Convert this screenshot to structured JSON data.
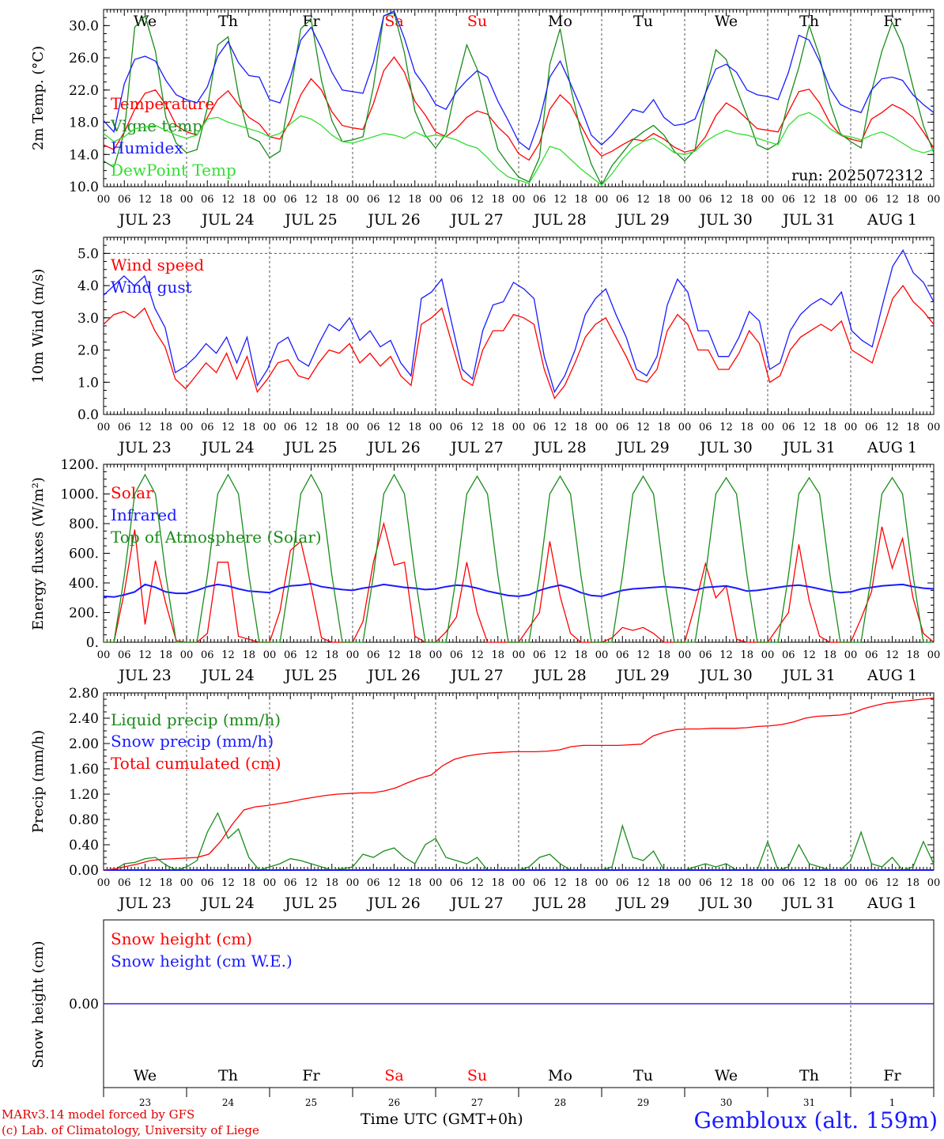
{
  "days": [
    "We",
    "Th",
    "Fr",
    "Sa",
    "Su",
    "Mo",
    "Tu",
    "We",
    "Th",
    "Fr"
  ],
  "weekend_days": [
    3,
    4
  ],
  "day_numbers": [
    "23",
    "24",
    "25",
    "26",
    "27",
    "28",
    "29",
    "30",
    "31",
    "1"
  ],
  "date_labels": [
    "JUL 23",
    "JUL 24",
    "JUL 25",
    "JUL 26",
    "JUL 27",
    "JUL 28",
    "JUL 29",
    "JUL 30",
    "JUL 31",
    "AUG  1"
  ],
  "hour_labels": [
    "00",
    "06",
    "12",
    "18"
  ],
  "colors": {
    "red": "#ff0000",
    "green": "#1a8c1a",
    "blue": "#1a1aff",
    "lightgreen": "#33dd33",
    "grid": "#555555"
  },
  "run_label": "run: 2025072312",
  "footer": {
    "model": "MARv3.14 model forced by GFS",
    "credit": "(c) Lab. of Climatology, University of Liege",
    "axis_title": "Time UTC (GMT+0h)",
    "station": "Gembloux (alt. 159m)"
  },
  "chart_data": [
    {
      "type": "line",
      "ylabel": "2m Temp. (°C)",
      "ylim": [
        10,
        32
      ],
      "yticks": [
        "10.0",
        "14.0",
        "18.0",
        "22.0",
        "26.0",
        "30.0"
      ],
      "x": "3-hourly steps from JUL 23 00 UTC to AUG 2 00 UTC",
      "series": [
        {
          "name": "Temperature",
          "color": "red",
          "values": [
            15.2,
            14.6,
            16.8,
            19.6,
            21.6,
            22.0,
            20.2,
            17.6,
            16.8,
            16.4,
            18.6,
            20.8,
            21.9,
            20.2,
            18.6,
            17.8,
            16.2,
            15.9,
            18.2,
            21.4,
            23.4,
            22.0,
            19.3,
            17.6,
            17.3,
            17.1,
            20.3,
            24.4,
            26.1,
            24.2,
            20.6,
            18.9,
            16.8,
            16.2,
            17.2,
            18.6,
            19.4,
            19.0,
            17.4,
            16.2,
            14.1,
            13.3,
            15.4,
            19.6,
            21.4,
            20.2,
            17.6,
            15.2,
            13.8,
            14.4,
            15.2,
            15.9,
            15.7,
            16.6,
            15.9,
            14.9,
            14.3,
            14.6,
            16.2,
            18.8,
            20.4,
            19.6,
            18.4,
            17.2,
            17.0,
            16.8,
            19.3,
            21.8,
            22.1,
            20.4,
            17.9,
            16.4,
            15.9,
            15.6,
            18.4,
            19.2,
            20.2,
            19.6,
            18.6,
            16.8,
            14.8
          ]
        },
        {
          "name": "Vigne temp",
          "color": "green",
          "values": [
            13.2,
            12.4,
            16.8,
            29.8,
            31.2,
            26.8,
            18.6,
            15.4,
            14.2,
            14.6,
            19.8,
            27.6,
            28.6,
            21.4,
            16.2,
            15.6,
            13.6,
            14.4,
            21.8,
            29.6,
            30.8,
            23.2,
            18.2,
            15.6,
            15.8,
            16.2,
            22.4,
            31.2,
            31.6,
            26.6,
            19.4,
            16.4,
            14.8,
            16.6,
            22.6,
            27.6,
            24.6,
            19.4,
            14.6,
            12.8,
            11.2,
            10.6,
            13.6,
            25.2,
            29.6,
            22.4,
            16.8,
            12.8,
            10.2,
            12.6,
            14.2,
            15.8,
            16.8,
            17.6,
            16.4,
            14.4,
            13.2,
            14.6,
            21.6,
            27.0,
            25.8,
            22.2,
            18.8,
            15.2,
            14.6,
            15.4,
            20.6,
            24.8,
            30.0,
            26.2,
            20.4,
            16.6,
            15.6,
            14.8,
            21.8,
            26.8,
            30.4,
            27.6,
            22.4,
            17.6,
            14.2
          ]
        },
        {
          "name": "Humidex",
          "color": "blue",
          "values": [
            18.2,
            16.8,
            22.8,
            25.8,
            26.2,
            25.6,
            23.2,
            21.4,
            20.8,
            20.4,
            22.4,
            26.2,
            28.0,
            25.4,
            23.8,
            23.6,
            20.8,
            20.4,
            23.6,
            28.2,
            29.8,
            27.2,
            24.2,
            22.0,
            21.8,
            21.6,
            25.4,
            31.2,
            31.8,
            28.4,
            24.2,
            22.4,
            20.2,
            19.6,
            21.8,
            23.2,
            24.4,
            23.6,
            20.6,
            18.2,
            15.6,
            14.6,
            18.2,
            23.6,
            25.6,
            22.8,
            19.8,
            16.4,
            15.2,
            16.4,
            18.0,
            19.6,
            19.2,
            20.8,
            18.6,
            17.6,
            17.8,
            18.4,
            21.6,
            24.6,
            25.2,
            24.2,
            22.0,
            21.4,
            21.2,
            20.8,
            24.2,
            28.8,
            28.2,
            25.6,
            22.2,
            20.2,
            19.6,
            19.2,
            22.0,
            23.4,
            23.6,
            23.2,
            21.4,
            20.2,
            19.2
          ]
        },
        {
          "name": "DewPoint Temp",
          "color": "lightgreen",
          "values": [
            16.6,
            15.6,
            16.2,
            17.2,
            17.4,
            17.6,
            17.0,
            16.4,
            16.0,
            16.4,
            18.4,
            18.6,
            18.0,
            17.6,
            17.2,
            16.8,
            16.2,
            16.6,
            17.8,
            18.8,
            18.4,
            17.6,
            16.4,
            15.6,
            15.4,
            15.8,
            16.2,
            16.6,
            16.4,
            16.0,
            16.8,
            16.2,
            16.4,
            16.2,
            15.8,
            15.2,
            14.8,
            13.6,
            12.2,
            11.2,
            10.8,
            10.4,
            12.6,
            15.0,
            14.6,
            13.4,
            12.2,
            11.2,
            10.2,
            11.6,
            13.4,
            14.8,
            15.6,
            16.0,
            15.2,
            14.2,
            14.0,
            14.4,
            15.6,
            16.4,
            17.0,
            16.6,
            16.4,
            16.0,
            15.6,
            15.2,
            17.6,
            18.8,
            19.2,
            18.4,
            17.2,
            16.4,
            16.2,
            15.8,
            16.4,
            16.8,
            16.2,
            15.4,
            14.6,
            14.2,
            14.6
          ]
        }
      ]
    },
    {
      "type": "line",
      "ylabel": "10m Wind (m/s)",
      "ylim": [
        0,
        5.5
      ],
      "yticks": [
        "0.0",
        "1.0",
        "2.0",
        "3.0",
        "4.0",
        "5.0"
      ],
      "series": [
        {
          "name": "Wind speed",
          "color": "red",
          "values": [
            2.8,
            3.1,
            3.2,
            3.0,
            3.3,
            2.6,
            2.1,
            1.1,
            0.8,
            1.2,
            1.6,
            1.3,
            1.9,
            1.1,
            1.8,
            0.7,
            1.1,
            1.6,
            1.7,
            1.2,
            1.1,
            1.6,
            2.0,
            1.9,
            2.2,
            1.6,
            1.9,
            1.5,
            1.8,
            1.2,
            0.9,
            2.8,
            3.0,
            3.3,
            2.2,
            1.1,
            0.9,
            2.0,
            2.6,
            2.6,
            3.1,
            3.0,
            2.8,
            1.4,
            0.5,
            0.9,
            1.6,
            2.4,
            2.8,
            3.0,
            2.4,
            1.8,
            1.1,
            1.0,
            1.4,
            2.6,
            3.1,
            2.8,
            2.0,
            2.0,
            1.4,
            1.4,
            1.9,
            2.6,
            2.2,
            1.0,
            1.2,
            2.0,
            2.4,
            2.6,
            2.8,
            2.6,
            2.9,
            2.0,
            1.8,
            1.6,
            2.6,
            3.6,
            4.0,
            3.5,
            3.2,
            2.8
          ]
        },
        {
          "name": "Wind gust",
          "color": "blue",
          "values": [
            3.7,
            4.0,
            4.3,
            4.0,
            4.3,
            3.3,
            2.7,
            1.3,
            1.5,
            1.8,
            2.2,
            1.9,
            2.4,
            1.6,
            2.4,
            0.9,
            1.4,
            2.2,
            2.4,
            1.7,
            1.5,
            2.2,
            2.8,
            2.6,
            3.0,
            2.3,
            2.6,
            2.1,
            2.3,
            1.6,
            1.2,
            3.6,
            3.8,
            4.2,
            2.8,
            1.4,
            1.1,
            2.6,
            3.4,
            3.5,
            4.1,
            3.9,
            3.6,
            1.8,
            0.7,
            1.2,
            2.0,
            3.1,
            3.6,
            3.9,
            3.1,
            2.4,
            1.4,
            1.2,
            1.8,
            3.4,
            4.2,
            3.8,
            2.6,
            2.6,
            1.8,
            1.8,
            2.4,
            3.2,
            2.9,
            1.4,
            1.6,
            2.6,
            3.1,
            3.4,
            3.6,
            3.4,
            3.8,
            2.6,
            2.3,
            2.1,
            3.4,
            4.6,
            5.1,
            4.4,
            4.1,
            3.5
          ]
        }
      ]
    },
    {
      "type": "line",
      "ylabel": "Energy fluxes (W/m²)",
      "ylim": [
        0,
        1200
      ],
      "yticks": [
        "0.",
        "200.",
        "400.",
        "600.",
        "800.",
        "1000.",
        "1200."
      ],
      "series": [
        {
          "name": "Solar",
          "color": "red",
          "values": [
            0,
            0,
            340,
            760,
            120,
            550,
            260,
            10,
            0,
            0,
            60,
            540,
            540,
            40,
            20,
            0,
            0,
            210,
            620,
            680,
            380,
            30,
            0,
            0,
            0,
            140,
            540,
            800,
            520,
            540,
            40,
            0,
            0,
            70,
            170,
            540,
            200,
            0,
            0,
            0,
            0,
            100,
            200,
            680,
            310,
            60,
            0,
            0,
            0,
            30,
            100,
            80,
            100,
            60,
            0,
            0,
            0,
            250,
            530,
            300,
            380,
            20,
            0,
            0,
            0,
            100,
            200,
            660,
            280,
            40,
            0,
            0,
            0,
            160,
            340,
            780,
            500,
            700,
            300,
            60,
            0
          ]
        },
        {
          "name": "Infrared",
          "color": "blue",
          "values": [
            310,
            305,
            320,
            340,
            390,
            370,
            340,
            330,
            330,
            350,
            375,
            390,
            380,
            360,
            345,
            340,
            335,
            365,
            380,
            385,
            395,
            375,
            365,
            355,
            350,
            365,
            375,
            390,
            380,
            370,
            365,
            355,
            360,
            375,
            385,
            380,
            365,
            345,
            330,
            315,
            310,
            320,
            350,
            370,
            385,
            365,
            335,
            315,
            310,
            330,
            350,
            360,
            365,
            370,
            375,
            370,
            365,
            350,
            370,
            375,
            380,
            365,
            345,
            350,
            360,
            370,
            380,
            385,
            375,
            360,
            345,
            335,
            340,
            360,
            370,
            380,
            385,
            390,
            375,
            365,
            360
          ]
        },
        {
          "name": "Top of Atmosphere (Solar)",
          "color": "green",
          "values": [
            0,
            0,
            450,
            1000,
            1130,
            1000,
            450,
            0,
            0,
            0,
            450,
            1000,
            1130,
            1000,
            450,
            0,
            0,
            0,
            450,
            1000,
            1130,
            1000,
            450,
            0,
            0,
            0,
            450,
            1000,
            1130,
            1000,
            450,
            0,
            0,
            0,
            450,
            1000,
            1120,
            1000,
            450,
            0,
            0,
            0,
            450,
            1000,
            1120,
            1000,
            450,
            0,
            0,
            0,
            450,
            1000,
            1120,
            1000,
            450,
            0,
            0,
            0,
            450,
            1000,
            1110,
            1000,
            450,
            0,
            0,
            0,
            450,
            1000,
            1110,
            1000,
            450,
            0,
            0,
            0,
            450,
            1000,
            1110,
            1000,
            450,
            0,
            0
          ]
        }
      ]
    },
    {
      "type": "line",
      "ylabel": "Precip (mm/h)",
      "ylim": [
        0,
        2.8
      ],
      "yticks": [
        "0.00",
        "0.40",
        "0.80",
        "1.20",
        "1.60",
        "2.00",
        "2.40",
        "2.80"
      ],
      "series": [
        {
          "name": "Liquid precip (mm/h)",
          "color": "green",
          "values": [
            0,
            0,
            0.1,
            0.12,
            0.18,
            0.2,
            0.08,
            0,
            0.05,
            0.15,
            0.6,
            0.9,
            0.5,
            0.65,
            0.2,
            0,
            0.05,
            0.1,
            0.18,
            0.15,
            0.1,
            0.05,
            0,
            0.02,
            0.05,
            0.25,
            0.2,
            0.3,
            0.35,
            0.2,
            0.1,
            0.4,
            0.5,
            0.2,
            0.15,
            0.1,
            0.2,
            0,
            0,
            0,
            0,
            0.05,
            0.2,
            0.25,
            0.1,
            0,
            0,
            0,
            0,
            0.05,
            0.7,
            0.2,
            0.15,
            0.3,
            0,
            0,
            0,
            0.05,
            0.1,
            0.05,
            0.1,
            0,
            0,
            0,
            0.45,
            0,
            0.05,
            0.4,
            0.1,
            0.05,
            0,
            0,
            0.15,
            0.6,
            0.1,
            0.05,
            0.2,
            0,
            0.05,
            0.45,
            0.1
          ]
        },
        {
          "name": "Snow precip (mm/h)",
          "color": "blue",
          "values": []
        },
        {
          "name": "Total cumulated (cm)",
          "color": "red",
          "values": [
            0,
            0.02,
            0.06,
            0.1,
            0.15,
            0.17,
            0.18,
            0.19,
            0.2,
            0.25,
            0.45,
            0.72,
            0.95,
            1.0,
            1.02,
            1.05,
            1.08,
            1.12,
            1.15,
            1.18,
            1.2,
            1.21,
            1.22,
            1.22,
            1.25,
            1.3,
            1.38,
            1.45,
            1.5,
            1.65,
            1.75,
            1.8,
            1.83,
            1.85,
            1.86,
            1.87,
            1.87,
            1.87,
            1.88,
            1.9,
            1.95,
            1.97,
            1.97,
            1.97,
            1.97,
            1.98,
            1.99,
            2.12,
            2.18,
            2.22,
            2.23,
            2.23,
            2.24,
            2.24,
            2.24,
            2.25,
            2.27,
            2.28,
            2.3,
            2.34,
            2.4,
            2.43,
            2.44,
            2.45,
            2.48,
            2.55,
            2.6,
            2.64,
            2.66,
            2.68,
            2.7,
            2.72
          ]
        }
      ]
    },
    {
      "type": "line",
      "ylabel": "Snow height (cm)",
      "yticks": [
        "0.00"
      ],
      "series": [
        {
          "name": "Snow height (cm)",
          "color": "red",
          "values": [
            0,
            0
          ]
        },
        {
          "name": "Snow height (cm W.E.)",
          "color": "blue",
          "values": [
            0,
            0
          ]
        }
      ]
    }
  ]
}
